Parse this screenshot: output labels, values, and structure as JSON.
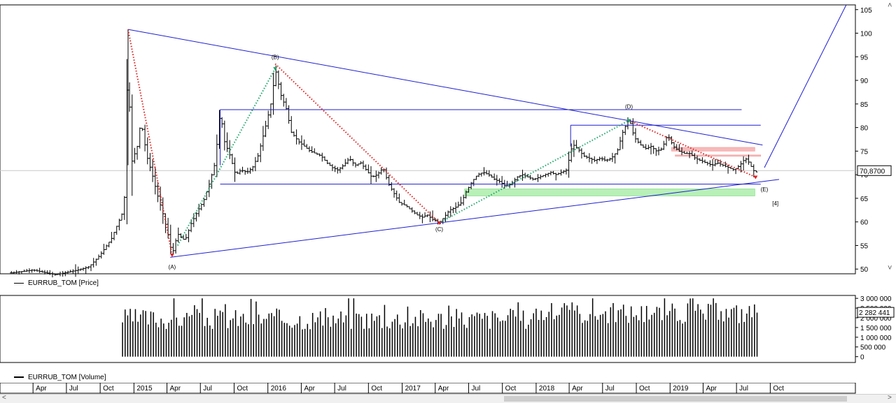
{
  "chart_data": [
    {
      "type": "line",
      "series": [
        {
          "name": "EURRUB_TOM [Price]"
        }
      ],
      "legend": "bottom-left",
      "ylim": [
        49,
        106
      ],
      "yticks": [
        105,
        100,
        95,
        90,
        85,
        80,
        75,
        70,
        65,
        60,
        55,
        50
      ],
      "last_value_label": "70,8700",
      "last_value": 70.87,
      "price_path": [
        [
          "2014-02",
          49.2
        ],
        [
          "2014-04",
          49.8
        ],
        [
          "2014-06",
          48.8
        ],
        [
          "2014-08",
          49.8
        ],
        [
          "2014-09",
          50.5
        ],
        [
          "2014-10",
          53.0
        ],
        [
          "2014-11",
          56.5
        ],
        [
          "2014-12-01",
          62.0
        ],
        [
          "2014-12-08",
          66.5
        ],
        [
          "2014-12-16",
          100.8
        ],
        [
          "2014-12-23",
          72.0
        ],
        [
          "2015-01-10",
          76.0
        ],
        [
          "2015-01-20",
          81.5
        ],
        [
          "2015-02-05",
          74.0
        ],
        [
          "2015-02-20",
          70.0
        ],
        [
          "2015-03-05",
          66.0
        ],
        [
          "2015-03-20",
          62.0
        ],
        [
          "2015-04-05",
          57.0
        ],
        [
          "2015-04-15",
          53.0
        ],
        [
          "2015-04-30",
          57.5
        ],
        [
          "2015-05-20",
          56.0
        ],
        [
          "2015-06-05",
          59.5
        ],
        [
          "2015-06-25",
          62.5
        ],
        [
          "2015-07-10",
          64.5
        ],
        [
          "2015-07-25",
          68.0
        ],
        [
          "2015-08-10",
          72.5
        ],
        [
          "2015-08-24",
          83.5
        ],
        [
          "2015-09-05",
          77.0
        ],
        [
          "2015-09-20",
          74.0
        ],
        [
          "2015-10-05",
          70.0
        ],
        [
          "2015-10-20",
          71.0
        ],
        [
          "2015-11-05",
          70.5
        ],
        [
          "2015-11-20",
          71.5
        ],
        [
          "2015-12-05",
          74.0
        ],
        [
          "2015-12-25",
          80.0
        ],
        [
          "2016-01-12",
          86.0
        ],
        [
          "2016-01-21",
          92.5
        ],
        [
          "2016-02-05",
          87.0
        ],
        [
          "2016-02-20",
          84.0
        ],
        [
          "2016-03-05",
          79.0
        ],
        [
          "2016-03-25",
          77.0
        ],
        [
          "2016-04-10",
          76.0
        ],
        [
          "2016-04-25",
          75.0
        ],
        [
          "2016-05-10",
          74.5
        ],
        [
          "2016-05-25",
          74.0
        ],
        [
          "2016-06-10",
          72.5
        ],
        [
          "2016-06-25",
          71.5
        ],
        [
          "2016-07-10",
          71.0
        ],
        [
          "2016-07-25",
          72.0
        ],
        [
          "2016-08-10",
          73.5
        ],
        [
          "2016-08-25",
          72.0
        ],
        [
          "2016-09-10",
          72.5
        ],
        [
          "2016-09-25",
          71.0
        ],
        [
          "2016-10-10",
          69.5
        ],
        [
          "2016-10-25",
          70.0
        ],
        [
          "2016-11-10",
          71.5
        ],
        [
          "2016-11-25",
          68.0
        ],
        [
          "2016-12-10",
          66.0
        ],
        [
          "2016-12-25",
          64.0
        ],
        [
          "2017-01-10",
          63.5
        ],
        [
          "2017-01-25",
          62.5
        ],
        [
          "2017-02-10",
          61.5
        ],
        [
          "2017-02-25",
          61.0
        ],
        [
          "2017-03-10",
          61.5
        ],
        [
          "2017-03-25",
          60.5
        ],
        [
          "2017-04-12",
          59.8
        ],
        [
          "2017-04-25",
          61.0
        ],
        [
          "2017-05-10",
          62.5
        ],
        [
          "2017-05-25",
          63.0
        ],
        [
          "2017-06-10",
          64.0
        ],
        [
          "2017-06-25",
          66.5
        ],
        [
          "2017-07-10",
          68.5
        ],
        [
          "2017-07-25",
          70.0
        ],
        [
          "2017-08-10",
          70.5
        ],
        [
          "2017-08-25",
          70.0
        ],
        [
          "2017-09-10",
          69.0
        ],
        [
          "2017-09-25",
          68.5
        ],
        [
          "2017-10-10",
          67.5
        ],
        [
          "2017-10-25",
          68.0
        ],
        [
          "2017-11-10",
          69.5
        ],
        [
          "2017-11-25",
          70.0
        ],
        [
          "2017-12-10",
          69.5
        ],
        [
          "2017-12-25",
          69.0
        ],
        [
          "2018-01-10",
          69.5
        ],
        [
          "2018-01-25",
          70.0
        ],
        [
          "2018-02-10",
          70.5
        ],
        [
          "2018-02-25",
          70.0
        ],
        [
          "2018-03-10",
          70.5
        ],
        [
          "2018-03-25",
          71.0
        ],
        [
          "2018-04-10",
          76.5
        ],
        [
          "2018-04-25",
          75.5
        ],
        [
          "2018-05-10",
          74.0
        ],
        [
          "2018-05-25",
          73.5
        ],
        [
          "2018-06-10",
          73.0
        ],
        [
          "2018-06-25",
          73.5
        ],
        [
          "2018-07-10",
          73.0
        ],
        [
          "2018-07-25",
          73.5
        ],
        [
          "2018-08-10",
          75.0
        ],
        [
          "2018-08-25",
          79.0
        ],
        [
          "2018-09-11",
          82.0
        ],
        [
          "2018-09-25",
          78.0
        ],
        [
          "2018-10-10",
          76.5
        ],
        [
          "2018-10-25",
          75.5
        ],
        [
          "2018-11-10",
          76.0
        ],
        [
          "2018-11-25",
          75.0
        ],
        [
          "2018-12-10",
          75.5
        ],
        [
          "2018-12-25",
          78.5
        ],
        [
          "2019-01-10",
          76.0
        ],
        [
          "2019-01-25",
          75.0
        ],
        [
          "2019-02-10",
          74.5
        ],
        [
          "2019-02-25",
          74.5
        ],
        [
          "2019-03-10",
          73.5
        ],
        [
          "2019-03-25",
          73.0
        ],
        [
          "2019-04-10",
          72.5
        ],
        [
          "2019-04-25",
          72.0
        ],
        [
          "2019-05-10",
          72.5
        ],
        [
          "2019-05-25",
          72.0
        ],
        [
          "2019-06-10",
          71.5
        ],
        [
          "2019-06-25",
          71.0
        ],
        [
          "2019-07-10",
          72.0
        ],
        [
          "2019-07-25",
          73.5
        ],
        [
          "2019-08-05",
          72.5
        ],
        [
          "2019-08-15",
          71.0
        ],
        [
          "2019-08-22",
          70.5
        ],
        [
          "2019-08-30",
          70.87
        ]
      ],
      "annotations": [
        {
          "text": "(A)",
          "at": [
            "2015-04-15",
            50.0
          ]
        },
        {
          "text": "(B)",
          "at": [
            "2016-01-21",
            94.5
          ]
        },
        {
          "text": "(C)",
          "at": [
            "2017-04-12",
            58.0
          ]
        },
        {
          "text": "(D)",
          "at": [
            "2018-09-11",
            84.0
          ]
        },
        {
          "text": "(E)",
          "at": [
            "2019-09-15",
            66.5
          ]
        },
        {
          "text": "[4]",
          "at": [
            "2019-10-15",
            63.5
          ]
        }
      ],
      "trendlines": [
        {
          "style": "blue",
          "from": [
            "2014-12-16",
            100.8
          ],
          "to": [
            "2019-09-10",
            76.3
          ]
        },
        {
          "style": "blue",
          "from": [
            "2015-04-10",
            52.5
          ],
          "to": [
            "2019-10-25",
            69.0
          ]
        },
        {
          "style": "blue",
          "from": [
            "2019-09-15",
            71.5
          ],
          "to": [
            "2020-04-25",
            106.0
          ]
        },
        {
          "style": "blue",
          "from": [
            "2015-08-24",
            83.8
          ],
          "to": [
            "2019-07-15",
            83.8
          ]
        },
        {
          "style": "blue",
          "from": [
            "2015-08-24",
            68.0
          ],
          "to": [
            "2019-09-05",
            68.0
          ]
        },
        {
          "style": "blue",
          "from": [
            "2018-04-05",
            80.5
          ],
          "to": [
            "2019-09-05",
            80.5
          ]
        },
        {
          "style": "blue",
          "from": [
            "2018-04-05",
            80.5
          ],
          "to": [
            "2018-04-05",
            76.0
          ]
        },
        {
          "style": "blue",
          "from": [
            "2015-08-24",
            83.8
          ],
          "to": [
            "2015-08-24",
            72.0
          ]
        },
        {
          "style": "red-dotted",
          "from": [
            "2014-12-16",
            100.8
          ],
          "to": [
            "2015-04-15",
            53.0
          ]
        },
        {
          "style": "green-dotted",
          "from": [
            "2015-04-30",
            55.0
          ],
          "to": [
            "2016-01-21",
            92.5
          ]
        },
        {
          "style": "red-dotted",
          "from": [
            "2016-01-21",
            93.5
          ],
          "to": [
            "2017-04-12",
            59.8
          ]
        },
        {
          "style": "green-dotted",
          "from": [
            "2017-04-12",
            59.8
          ],
          "to": [
            "2018-09-11",
            81.5
          ]
        },
        {
          "style": "red-dotted",
          "from": [
            "2018-09-11",
            81.5
          ],
          "to": [
            "2019-08-22",
            69.5
          ]
        }
      ],
      "zones": [
        {
          "color": "green",
          "from": [
            "2017-06-20",
            67.0
          ],
          "to": [
            "2019-08-20",
            65.5
          ]
        },
        {
          "color": "red",
          "from": [
            "2019-01-05",
            75.8
          ],
          "to": [
            "2019-08-20",
            75.0
          ]
        },
        {
          "color": "red",
          "from": [
            "2019-01-15",
            74.2
          ],
          "to": [
            "2019-09-05",
            74.0
          ]
        }
      ]
    },
    {
      "type": "bar",
      "series": [
        {
          "name": "EURRUB_TOM [Volume]"
        }
      ],
      "legend": "bottom-left",
      "ylim": [
        -300000,
        3150000
      ],
      "ytick_labels": [
        "3 000 000",
        "2 500 000",
        "2 000 000",
        "1 500 000",
        "1 000 000",
        "500 000",
        "0"
      ],
      "ytick_values": [
        3000000,
        2500000,
        2000000,
        1500000,
        1000000,
        500000,
        0
      ],
      "last_value_label": "2 282 441",
      "last_value": 2282441
    }
  ],
  "x_axis": {
    "labels": [
      "Apr",
      "Jul",
      "Oct",
      "2015",
      "Apr",
      "Jul",
      "Oct",
      "2016",
      "Apr",
      "Jul",
      "Oct",
      "2017",
      "Apr",
      "Jul",
      "Oct",
      "2018",
      "Apr",
      "Jul",
      "Oct",
      "2019",
      "Apr",
      "Jul",
      "Oct"
    ],
    "dates": [
      "2014-04-01",
      "2014-07-01",
      "2014-10-01",
      "2015-01-01",
      "2015-04-01",
      "2015-07-01",
      "2015-10-01",
      "2016-01-01",
      "2016-04-01",
      "2016-07-01",
      "2016-10-01",
      "2017-01-01",
      "2017-04-01",
      "2017-07-01",
      "2017-10-01",
      "2018-01-01",
      "2018-04-01",
      "2018-07-01",
      "2018-10-01",
      "2019-01-01",
      "2019-04-01",
      "2019-07-01",
      "2019-10-01"
    ]
  },
  "colors": {
    "bars": "#000000",
    "trendline": "#1f1fd0",
    "red_dotted": "#e02020",
    "green_dotted": "#1fa66a",
    "green_zone": "#b8f0b8",
    "red_zone": "#f7b9b9",
    "reference_line": "#c8c8c8"
  },
  "ui": {
    "price_legend": "EURRUB_TOM [Price]",
    "volume_legend": "EURRUB_TOM [Volume]",
    "price_last_badge": "70,8700",
    "volume_last_badge": "2 282 441",
    "scroll_up": "˄",
    "scroll_down": "˅",
    "scroll_left": "<",
    "scroll_right": ">"
  }
}
